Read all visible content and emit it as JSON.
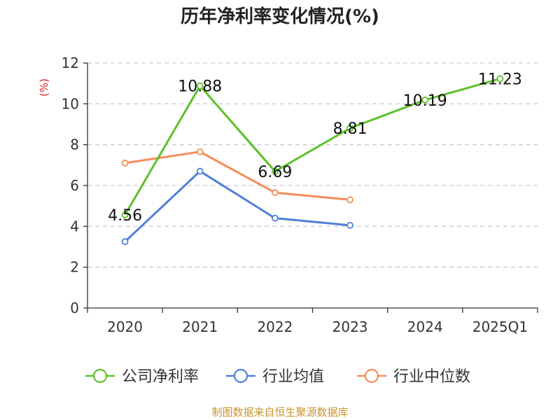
{
  "chart_data": {
    "type": "line",
    "title": "历年净利率变化情况(%)",
    "ylabel": "(%)",
    "xlabel": "",
    "categories": [
      "2020",
      "2021",
      "2022",
      "2023",
      "2024",
      "2025Q1"
    ],
    "ylim": [
      0,
      12
    ],
    "yticks": [
      "0",
      "2",
      "4",
      "6",
      "8",
      "10",
      "12"
    ],
    "grid": true,
    "legend_position": "bottom",
    "series": [
      {
        "name": "公司净利率",
        "color": "#5bc12a",
        "values": [
          4.56,
          10.88,
          6.69,
          8.81,
          10.19,
          11.23
        ],
        "labels": [
          "4.56",
          "10.88",
          "6.69",
          "8.81",
          "10.19",
          "11.23"
        ]
      },
      {
        "name": "行业均值",
        "color": "#4f7fd8",
        "values": [
          3.25,
          6.7,
          4.4,
          4.05,
          null,
          null
        ]
      },
      {
        "name": "行业中位数",
        "color": "#f58d5a",
        "values": [
          7.1,
          7.65,
          5.65,
          5.3,
          null,
          null
        ]
      }
    ],
    "source": "制图数据来自恒生聚源数据库",
    "colors": {
      "ylabel": "#dd2222",
      "source": "#c8942e",
      "axis": "#333333",
      "grid": "#cccccc"
    }
  }
}
